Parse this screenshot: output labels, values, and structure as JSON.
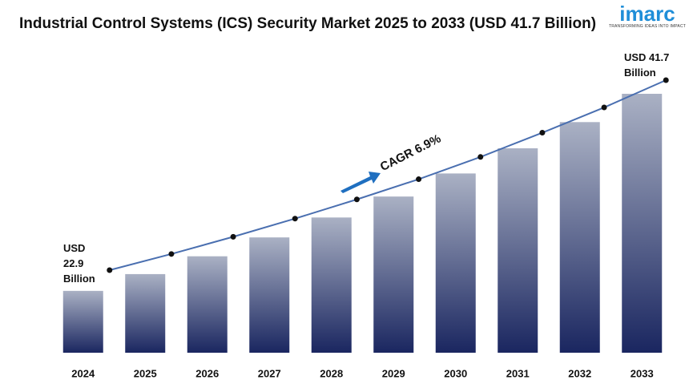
{
  "chart_data": {
    "type": "bar",
    "title": "Industrial Control Systems (ICS) Security Market 2025 to 2033 (USD 41.7 Billion)",
    "logo": "imarc",
    "logo_tagline": "TRANSFORMING IDEAS INTO IMPACT",
    "categories": [
      "2024",
      "2025",
      "2026",
      "2027",
      "2028",
      "2029",
      "2030",
      "2031",
      "2032",
      "2033"
    ],
    "values": [
      22.9,
      24.5,
      26.2,
      28.0,
      29.9,
      31.9,
      34.1,
      36.5,
      39.0,
      41.7
    ],
    "color": "#1a2660",
    "line_color": "#4a6fb0",
    "ylim": [
      17,
      43
    ],
    "annotations": {
      "start": "USD 22.9 Billion",
      "end": "USD 41.7 Billion",
      "cagr": "CAGR 6.9%"
    }
  }
}
